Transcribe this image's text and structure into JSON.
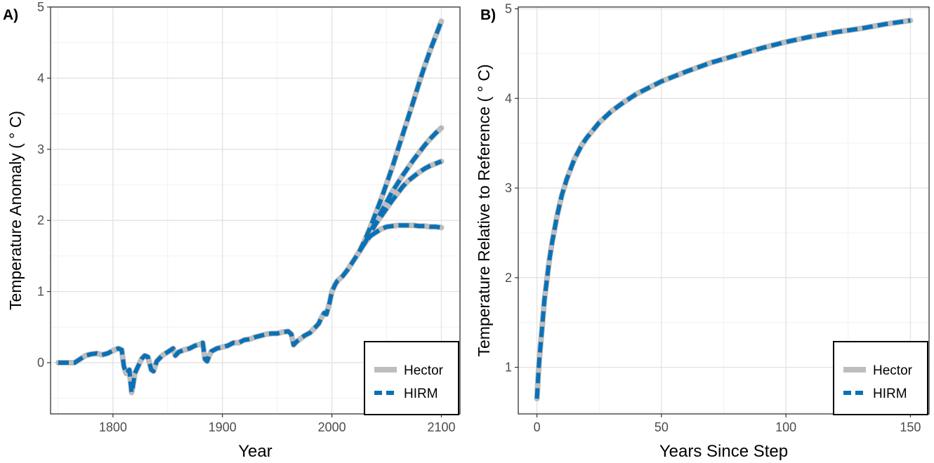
{
  "colors": {
    "hector": "#bdbdbd",
    "hirm": "#0a71b7",
    "grid_major": "#e3e3e3",
    "grid_minor": "#f1f1f1",
    "axis": "#333333",
    "text": "#4d4d4d"
  },
  "chart_data": [
    {
      "type": "line",
      "panel_label": "A)",
      "xlabel": "Year",
      "ylabel": "Temperature Anomaly ( ° C)",
      "xlim": [
        1743,
        2117
      ],
      "ylim": [
        -0.72,
        5.0
      ],
      "xticks": [
        1800,
        1900,
        2000,
        2100
      ],
      "xtick_labels": [
        "1800",
        "1900",
        "2000",
        "2100"
      ],
      "yticks": [
        0,
        1,
        2,
        3,
        4,
        5
      ],
      "ytick_labels": [
        "0",
        "1",
        "2",
        "3",
        "4",
        "5"
      ],
      "grid": true,
      "legend_position": "bottom-right",
      "legend_entries": [
        "Hector",
        "HIRM"
      ],
      "series": [
        {
          "name": "Hector",
          "lines": [
            {
              "x": [
                1750,
                1760,
                1765,
                1770,
                1775,
                1780,
                1785,
                1790,
                1795,
                1800,
                1805,
                1808,
                1810,
                1812,
                1815,
                1817,
                1818,
                1820,
                1823,
                1826,
                1829,
                1832,
                1835,
                1837,
                1840,
                1845,
                1850,
                1853,
                1855,
                1857,
                1860,
                1865,
                1870,
                1875,
                1880,
                1882,
                1884,
                1886,
                1888,
                1890,
                1895,
                1900,
                1905,
                1910,
                1915,
                1920,
                1925,
                1930,
                1935,
                1940,
                1945,
                1950,
                1955,
                1960,
                1963,
                1965,
                1968,
                1970,
                1975,
                1980,
                1985,
                1988,
                1990,
                1993,
                1995,
                1998,
                2000,
                2003,
                2005,
                2010,
                2015,
                2020,
                2025,
                2030,
                2035
              ],
              "y": [
                0,
                0,
                0,
                0.05,
                0.1,
                0.12,
                0.13,
                0.11,
                0.13,
                0.17,
                0.2,
                0.18,
                -0.05,
                -0.15,
                -0.1,
                -0.42,
                -0.35,
                -0.15,
                -0.05,
                0.05,
                0.1,
                0.08,
                -0.1,
                -0.12,
                0.02,
                0.1,
                0.15,
                0.18,
                0.2,
                0.1,
                0.15,
                0.18,
                0.2,
                0.24,
                0.26,
                0.28,
                0.05,
                0.02,
                0.1,
                0.16,
                0.2,
                0.22,
                0.24,
                0.28,
                0.28,
                0.32,
                0.33,
                0.36,
                0.38,
                0.4,
                0.41,
                0.41,
                0.43,
                0.44,
                0.4,
                0.25,
                0.3,
                0.32,
                0.38,
                0.42,
                0.5,
                0.55,
                0.62,
                0.7,
                0.68,
                0.85,
                1.0,
                1.1,
                1.15,
                1.22,
                1.32,
                1.44,
                1.56,
                1.68,
                1.78
              ]
            },
            {
              "x": [
                2035,
                2040,
                2045,
                2050,
                2055,
                2060,
                2065,
                2070,
                2075,
                2080,
                2085,
                2090,
                2095,
                2100
              ],
              "y": [
                1.78,
                1.83,
                1.88,
                1.91,
                1.92,
                1.93,
                1.93,
                1.93,
                1.93,
                1.92,
                1.92,
                1.91,
                1.91,
                1.9
              ]
            },
            {
              "x": [
                2030,
                2035,
                2040,
                2045,
                2050,
                2055,
                2060,
                2065,
                2070,
                2075,
                2080,
                2085,
                2090,
                2095,
                2100
              ],
              "y": [
                1.68,
                1.82,
                1.95,
                2.06,
                2.17,
                2.28,
                2.38,
                2.48,
                2.56,
                2.62,
                2.68,
                2.73,
                2.77,
                2.8,
                2.83
              ]
            },
            {
              "x": [
                2030,
                2035,
                2040,
                2045,
                2050,
                2055,
                2060,
                2065,
                2070,
                2075,
                2080,
                2085,
                2090,
                2095,
                2100
              ],
              "y": [
                1.68,
                1.84,
                1.98,
                2.12,
                2.26,
                2.4,
                2.52,
                2.64,
                2.75,
                2.86,
                2.96,
                3.06,
                3.15,
                3.23,
                3.3
              ]
            },
            {
              "x": [
                2025,
                2030,
                2035,
                2040,
                2045,
                2050,
                2055,
                2060,
                2065,
                2070,
                2075,
                2080,
                2085,
                2090,
                2095,
                2100
              ],
              "y": [
                1.56,
                1.72,
                1.9,
                2.1,
                2.3,
                2.52,
                2.74,
                2.98,
                3.22,
                3.46,
                3.7,
                3.95,
                4.18,
                4.4,
                4.6,
                4.8
              ]
            }
          ]
        },
        {
          "name": "HIRM",
          "lines": [
            {
              "x": [
                1750,
                1760,
                1765,
                1770,
                1775,
                1780,
                1785,
                1790,
                1795,
                1800,
                1805,
                1808,
                1810,
                1812,
                1815,
                1817,
                1818,
                1820,
                1823,
                1826,
                1829,
                1832,
                1835,
                1837,
                1840,
                1845,
                1850,
                1853,
                1855,
                1857,
                1860,
                1865,
                1870,
                1875,
                1880,
                1882,
                1884,
                1886,
                1888,
                1890,
                1895,
                1900,
                1905,
                1910,
                1915,
                1920,
                1925,
                1930,
                1935,
                1940,
                1945,
                1950,
                1955,
                1960,
                1963,
                1965,
                1968,
                1970,
                1975,
                1980,
                1985,
                1988,
                1990,
                1993,
                1995,
                1998,
                2000,
                2003,
                2005,
                2010,
                2015,
                2020,
                2025,
                2030,
                2035
              ],
              "y": [
                0,
                0,
                0,
                0.05,
                0.1,
                0.12,
                0.13,
                0.11,
                0.13,
                0.17,
                0.2,
                0.18,
                -0.05,
                -0.15,
                -0.1,
                -0.42,
                -0.35,
                -0.15,
                -0.05,
                0.05,
                0.1,
                0.08,
                -0.1,
                -0.12,
                0.02,
                0.1,
                0.15,
                0.18,
                0.2,
                0.1,
                0.15,
                0.18,
                0.2,
                0.24,
                0.26,
                0.28,
                0.05,
                0.02,
                0.1,
                0.16,
                0.2,
                0.22,
                0.24,
                0.28,
                0.28,
                0.32,
                0.33,
                0.36,
                0.38,
                0.4,
                0.41,
                0.41,
                0.43,
                0.44,
                0.4,
                0.25,
                0.3,
                0.32,
                0.38,
                0.42,
                0.5,
                0.55,
                0.62,
                0.7,
                0.68,
                0.85,
                1.0,
                1.1,
                1.15,
                1.22,
                1.32,
                1.44,
                1.56,
                1.68,
                1.78
              ]
            },
            {
              "x": [
                2035,
                2040,
                2045,
                2050,
                2055,
                2060,
                2065,
                2070,
                2075,
                2080,
                2085,
                2090,
                2095,
                2100
              ],
              "y": [
                1.78,
                1.83,
                1.88,
                1.91,
                1.92,
                1.93,
                1.93,
                1.93,
                1.93,
                1.92,
                1.92,
                1.91,
                1.91,
                1.9
              ]
            },
            {
              "x": [
                2030,
                2035,
                2040,
                2045,
                2050,
                2055,
                2060,
                2065,
                2070,
                2075,
                2080,
                2085,
                2090,
                2095,
                2100
              ],
              "y": [
                1.68,
                1.82,
                1.95,
                2.06,
                2.17,
                2.28,
                2.38,
                2.48,
                2.56,
                2.62,
                2.68,
                2.73,
                2.77,
                2.8,
                2.83
              ]
            },
            {
              "x": [
                2030,
                2035,
                2040,
                2045,
                2050,
                2055,
                2060,
                2065,
                2070,
                2075,
                2080,
                2085,
                2090,
                2095,
                2100
              ],
              "y": [
                1.68,
                1.84,
                1.98,
                2.12,
                2.26,
                2.4,
                2.52,
                2.64,
                2.75,
                2.86,
                2.96,
                3.06,
                3.15,
                3.23,
                3.3
              ]
            },
            {
              "x": [
                2025,
                2030,
                2035,
                2040,
                2045,
                2050,
                2055,
                2060,
                2065,
                2070,
                2075,
                2080,
                2085,
                2090,
                2095,
                2100
              ],
              "y": [
                1.56,
                1.72,
                1.9,
                2.1,
                2.3,
                2.52,
                2.74,
                2.98,
                3.22,
                3.46,
                3.7,
                3.95,
                4.18,
                4.4,
                4.6,
                4.8
              ]
            }
          ]
        }
      ]
    },
    {
      "type": "line",
      "panel_label": "B)",
      "xlabel": "Years Since Step",
      "ylabel": "Temperature Relative to Reference ( ° C)",
      "xlim": [
        -7.5,
        157.5
      ],
      "ylim": [
        0.48,
        5.02
      ],
      "xticks": [
        0,
        50,
        100,
        150
      ],
      "xtick_labels": [
        "0",
        "50",
        "100",
        "150"
      ],
      "yticks": [
        1,
        2,
        3,
        4,
        5
      ],
      "ytick_labels": [
        "1",
        "2",
        "3",
        "4",
        "5"
      ],
      "grid": true,
      "legend_position": "bottom-right",
      "legend_entries": [
        "Hector",
        "HIRM"
      ],
      "series": [
        {
          "name": "Hector",
          "lines": [
            {
              "x": [
                0,
                0.5,
                1,
                2,
                3,
                4,
                5,
                6,
                8,
                10,
                12,
                15,
                18,
                20,
                25,
                30,
                35,
                40,
                45,
                50,
                60,
                70,
                80,
                90,
                100,
                110,
                120,
                130,
                140,
                150
              ],
              "y": [
                0.65,
                0.9,
                1.1,
                1.42,
                1.75,
                1.98,
                2.2,
                2.38,
                2.68,
                2.92,
                3.1,
                3.32,
                3.48,
                3.56,
                3.73,
                3.86,
                3.96,
                4.05,
                4.12,
                4.19,
                4.3,
                4.4,
                4.48,
                4.56,
                4.63,
                4.69,
                4.74,
                4.78,
                4.83,
                4.87
              ]
            }
          ]
        },
        {
          "name": "HIRM",
          "lines": [
            {
              "x": [
                0,
                0.5,
                1,
                2,
                3,
                4,
                5,
                6,
                8,
                10,
                12,
                15,
                18,
                20,
                25,
                30,
                35,
                40,
                45,
                50,
                60,
                70,
                80,
                90,
                100,
                110,
                120,
                130,
                140,
                150
              ],
              "y": [
                0.65,
                0.9,
                1.1,
                1.42,
                1.75,
                1.98,
                2.2,
                2.38,
                2.68,
                2.92,
                3.1,
                3.32,
                3.48,
                3.56,
                3.73,
                3.86,
                3.96,
                4.05,
                4.12,
                4.19,
                4.3,
                4.4,
                4.48,
                4.56,
                4.63,
                4.69,
                4.74,
                4.78,
                4.83,
                4.87
              ]
            }
          ]
        }
      ]
    }
  ]
}
